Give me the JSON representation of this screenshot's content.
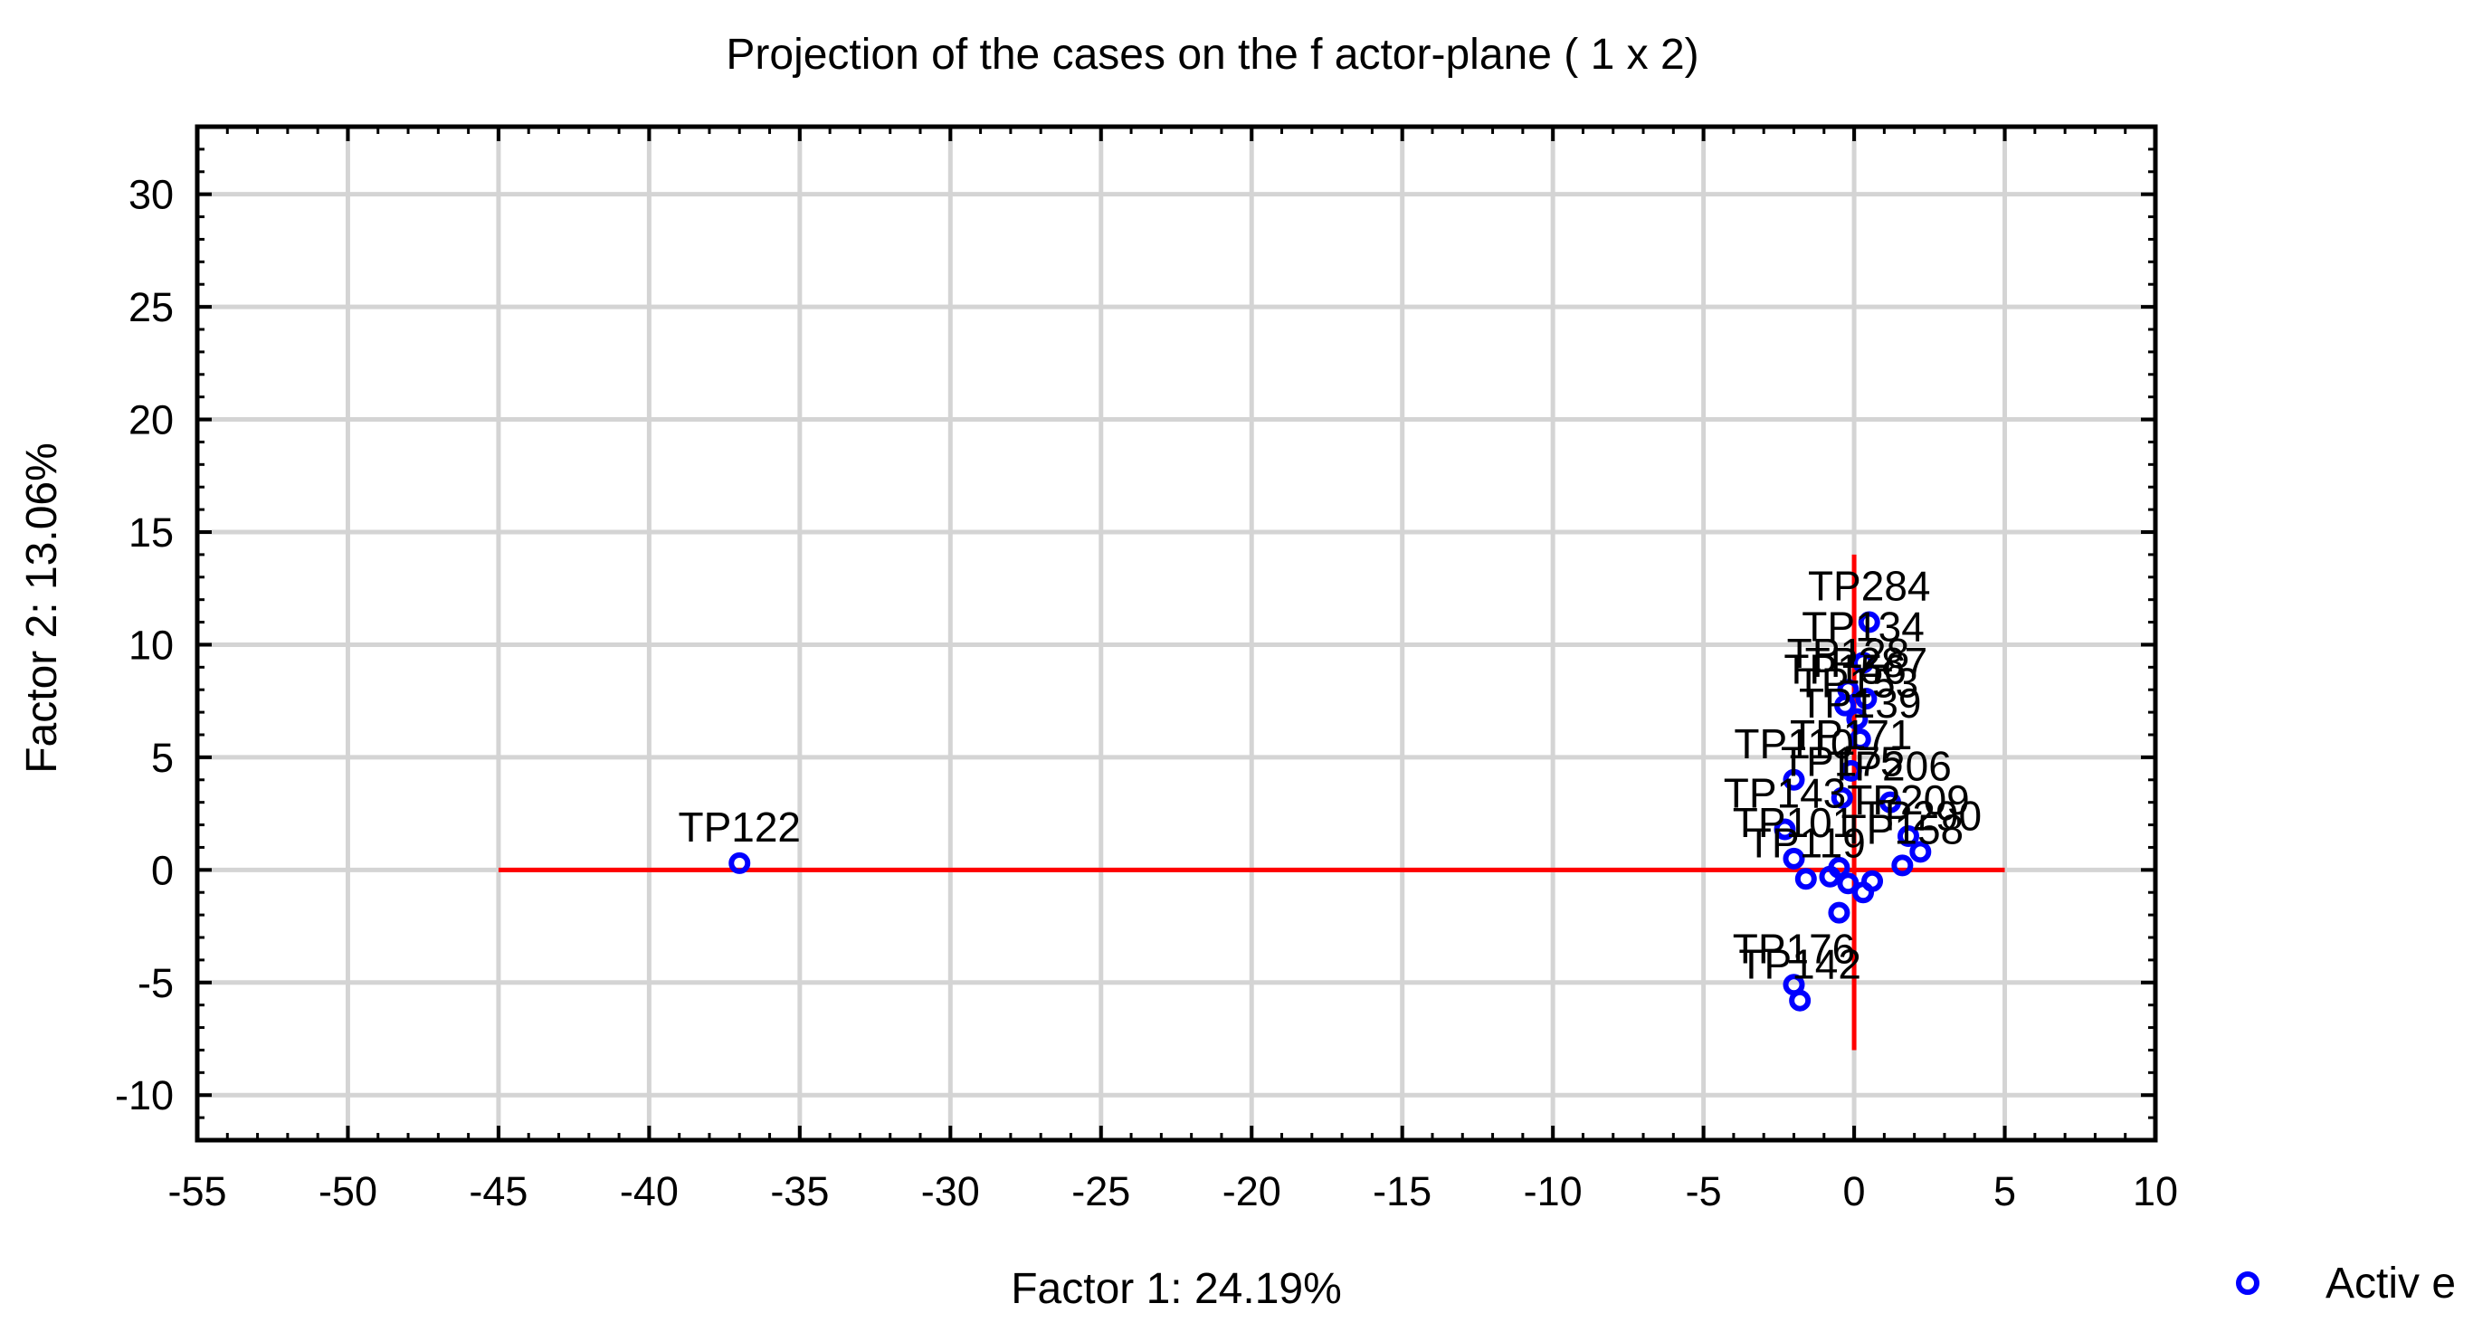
{
  "chart_data": {
    "type": "scatter",
    "title": "Projection of the cases on the f actor-plane (  1 x   2)",
    "xlabel": "Factor 1: 24.19%",
    "ylabel": "Factor 2: 13.06%",
    "xlim": [
      -55,
      10
    ],
    "ylim": [
      -12,
      33
    ],
    "x_ticks": [
      -55,
      -50,
      -45,
      -40,
      -35,
      -30,
      -25,
      -20,
      -15,
      -10,
      -5,
      0,
      5,
      10
    ],
    "y_ticks": [
      -10,
      -5,
      0,
      5,
      10,
      15,
      20,
      25,
      30
    ],
    "grid": true,
    "legend": {
      "placement": "bottom-right",
      "entries": [
        {
          "name": "Activ e",
          "color": "#0000ff",
          "marker": "open-circle"
        }
      ]
    },
    "reference_lines": [
      {
        "orientation": "horizontal",
        "y": 0,
        "x_range": [
          -45,
          5
        ],
        "color": "#ff0000"
      },
      {
        "orientation": "vertical",
        "x": 0,
        "y_range": [
          -8,
          14
        ],
        "color": "#ff0000"
      }
    ],
    "series": [
      {
        "name": "Activ e",
        "color": "#0000ff",
        "points": [
          {
            "x": -37,
            "y": 0.3,
            "label": "TP122"
          },
          {
            "x": 0.5,
            "y": 11,
            "label": "TP284"
          },
          {
            "x": 0.3,
            "y": 9.2,
            "label": "TP134"
          },
          {
            "x": -0.2,
            "y": 8.0,
            "label": "TP128"
          },
          {
            "x": 0.4,
            "y": 7.6,
            "label": "TP287"
          },
          {
            "x": -0.3,
            "y": 7.3,
            "label": "TP156"
          },
          {
            "x": 0.1,
            "y": 6.7,
            "label": "TP153"
          },
          {
            "x": 0.2,
            "y": 5.8,
            "label": "TP139"
          },
          {
            "x": -0.1,
            "y": 4.4,
            "label": "TP171"
          },
          {
            "x": -2.0,
            "y": 4.0,
            "label": "TP110"
          },
          {
            "x": -0.4,
            "y": 3.2,
            "label": "TP175"
          },
          {
            "x": 1.2,
            "y": 3.0,
            "label": "TP206"
          },
          {
            "x": -2.3,
            "y": 1.8,
            "label": "TP143"
          },
          {
            "x": 1.8,
            "y": 1.5,
            "label": "TP209"
          },
          {
            "x": 2.2,
            "y": 0.8,
            "label": "TP290"
          },
          {
            "x": -2.0,
            "y": 0.5,
            "label": "TP101"
          },
          {
            "x": 1.6,
            "y": 0.2,
            "label": "TP158"
          },
          {
            "x": -1.6,
            "y": -0.4,
            "label": "TP119"
          },
          {
            "x": -0.5,
            "y": 0.1,
            "label": ""
          },
          {
            "x": -0.2,
            "y": -0.6,
            "label": ""
          },
          {
            "x": 0.3,
            "y": -1.0,
            "label": ""
          },
          {
            "x": 0.6,
            "y": -0.5,
            "label": ""
          },
          {
            "x": -0.8,
            "y": -0.3,
            "label": ""
          },
          {
            "x": -0.5,
            "y": -1.9,
            "label": ""
          },
          {
            "x": -2.0,
            "y": -5.1,
            "label": "TP176"
          },
          {
            "x": -1.8,
            "y": -5.8,
            "label": "TP142"
          }
        ]
      }
    ]
  }
}
